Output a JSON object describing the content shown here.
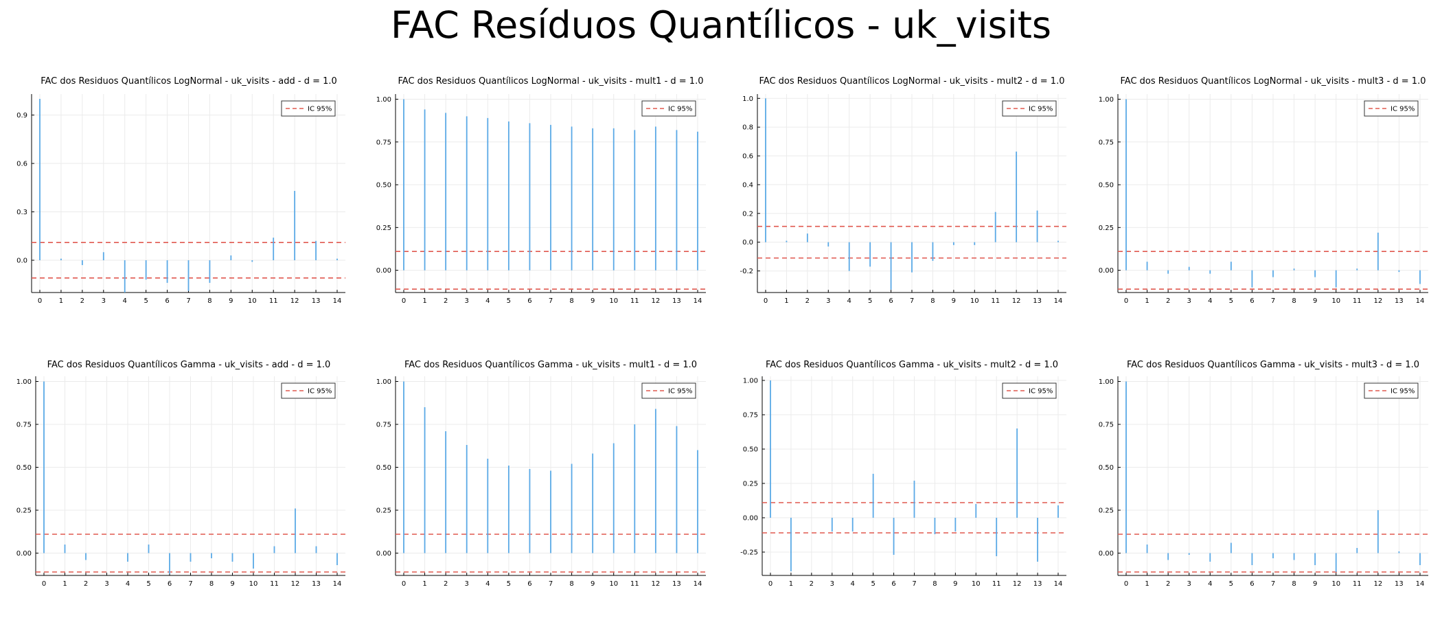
{
  "main_title": "FAC Resíduos Quantílicos - uk_visits",
  "colors": {
    "bar": "#5aa9e6",
    "ci": "#e0584f",
    "grid": "#ebebeb",
    "axis": "#000000"
  },
  "chart_data": [
    {
      "type": "bar",
      "title": "FAC dos Residuos Quantílicos LogNormal - uk_visits - add - d = 1.0",
      "legend": {
        "label": "IC 95%",
        "position": "top-right"
      },
      "x": [
        0,
        1,
        2,
        3,
        4,
        5,
        6,
        7,
        8,
        9,
        10,
        11,
        12,
        13,
        14
      ],
      "values": [
        1.0,
        0.01,
        -0.03,
        0.05,
        -0.2,
        -0.12,
        -0.14,
        -0.19,
        -0.14,
        0.03,
        -0.01,
        0.14,
        0.43,
        0.12,
        0.01
      ],
      "ci": 0.11,
      "ylim": [
        -0.2,
        1.03
      ],
      "yticks": [
        0.0,
        0.3,
        0.6,
        0.9
      ],
      "ytick_labels": [
        "0.0",
        "0.3",
        "0.6",
        "0.9"
      ],
      "grid": true
    },
    {
      "type": "bar",
      "title": "FAC dos Residuos Quantílicos LogNormal - uk_visits - mult1 - d = 1.0",
      "legend": {
        "label": "IC 95%",
        "position": "top-right"
      },
      "x": [
        0,
        1,
        2,
        3,
        4,
        5,
        6,
        7,
        8,
        9,
        10,
        11,
        12,
        13,
        14
      ],
      "values": [
        1.0,
        0.94,
        0.92,
        0.9,
        0.89,
        0.87,
        0.86,
        0.85,
        0.84,
        0.83,
        0.83,
        0.82,
        0.84,
        0.82,
        0.81
      ],
      "ci": 0.11,
      "ylim": [
        -0.13,
        1.03
      ],
      "yticks": [
        0.0,
        0.25,
        0.5,
        0.75,
        1.0
      ],
      "ytick_labels": [
        "0.00",
        "0.25",
        "0.50",
        "0.75",
        "1.00"
      ],
      "grid": true
    },
    {
      "type": "bar",
      "title": "FAC dos Residuos Quantílicos LogNormal - uk_visits - mult2 - d = 1.0",
      "legend": {
        "label": "IC 95%",
        "position": "top-right"
      },
      "x": [
        0,
        1,
        2,
        3,
        4,
        5,
        6,
        7,
        8,
        9,
        10,
        11,
        12,
        13,
        14
      ],
      "values": [
        1.0,
        0.01,
        0.06,
        -0.03,
        -0.2,
        -0.17,
        -0.33,
        -0.21,
        -0.13,
        -0.02,
        -0.02,
        0.21,
        0.63,
        0.22,
        0.01
      ],
      "ci": 0.11,
      "ylim": [
        -0.35,
        1.03
      ],
      "yticks": [
        -0.2,
        0.0,
        0.2,
        0.4,
        0.6,
        0.8,
        1.0
      ],
      "ytick_labels": [
        "-0.2",
        "0.0",
        "0.2",
        "0.4",
        "0.6",
        "0.8",
        "1.0"
      ],
      "grid": true
    },
    {
      "type": "bar",
      "title": "FAC dos Residuos Quantílicos LogNormal - uk_visits - mult3 - d = 1.0",
      "legend": {
        "label": "IC 95%",
        "position": "top-right"
      },
      "x": [
        0,
        1,
        2,
        3,
        4,
        5,
        6,
        7,
        8,
        9,
        10,
        11,
        12,
        13,
        14
      ],
      "values": [
        1.0,
        0.05,
        -0.02,
        0.02,
        -0.02,
        0.05,
        -0.1,
        -0.04,
        0.01,
        -0.04,
        -0.1,
        0.01,
        0.22,
        -0.01,
        -0.08
      ],
      "ci": 0.11,
      "ylim": [
        -0.13,
        1.03
      ],
      "yticks": [
        0.0,
        0.25,
        0.5,
        0.75,
        1.0
      ],
      "ytick_labels": [
        "0.00",
        "0.25",
        "0.50",
        "0.75",
        "1.00"
      ],
      "grid": true
    },
    {
      "type": "bar",
      "title": "FAC dos Residuos Quantílicos Gamma - uk_visits - add - d = 1.0",
      "legend": {
        "label": "IC 95%",
        "position": "top-right"
      },
      "x": [
        0,
        1,
        2,
        3,
        4,
        5,
        6,
        7,
        8,
        9,
        10,
        11,
        12,
        13,
        14
      ],
      "values": [
        1.0,
        0.05,
        -0.04,
        0.0,
        -0.05,
        0.05,
        -0.12,
        -0.05,
        -0.03,
        -0.05,
        -0.09,
        0.04,
        0.26,
        0.04,
        -0.07
      ],
      "ci": 0.11,
      "ylim": [
        -0.13,
        1.03
      ],
      "yticks": [
        0.0,
        0.25,
        0.5,
        0.75,
        1.0
      ],
      "ytick_labels": [
        "0.00",
        "0.25",
        "0.50",
        "0.75",
        "1.00"
      ],
      "grid": true
    },
    {
      "type": "bar",
      "title": "FAC dos Residuos Quantílicos Gamma - uk_visits - mult1 - d = 1.0",
      "legend": {
        "label": "IC 95%",
        "position": "top-right"
      },
      "x": [
        0,
        1,
        2,
        3,
        4,
        5,
        6,
        7,
        8,
        9,
        10,
        11,
        12,
        13,
        14
      ],
      "values": [
        1.0,
        0.85,
        0.71,
        0.63,
        0.55,
        0.51,
        0.49,
        0.48,
        0.52,
        0.58,
        0.64,
        0.75,
        0.84,
        0.74,
        0.6
      ],
      "ci": 0.11,
      "ylim": [
        -0.13,
        1.03
      ],
      "yticks": [
        0.0,
        0.25,
        0.5,
        0.75,
        1.0
      ],
      "ytick_labels": [
        "0.00",
        "0.25",
        "0.50",
        "0.75",
        "1.00"
      ],
      "grid": true
    },
    {
      "type": "bar",
      "title": "FAC dos Residuos Quantílicos Gamma - uk_visits - mult2 - d = 1.0",
      "legend": {
        "label": "IC 95%",
        "position": "top-right"
      },
      "x": [
        0,
        1,
        2,
        3,
        4,
        5,
        6,
        7,
        8,
        9,
        10,
        11,
        12,
        13,
        14
      ],
      "values": [
        1.0,
        -0.39,
        0.0,
        -0.1,
        -0.1,
        0.32,
        -0.27,
        0.27,
        -0.12,
        -0.1,
        0.1,
        -0.28,
        0.65,
        -0.32,
        0.09
      ],
      "ci": 0.11,
      "ylim": [
        -0.42,
        1.03
      ],
      "yticks": [
        -0.25,
        0.0,
        0.25,
        0.5,
        0.75,
        1.0
      ],
      "ytick_labels": [
        "-0.25",
        "0.00",
        "0.25",
        "0.50",
        "0.75",
        "1.00"
      ],
      "grid": true
    },
    {
      "type": "bar",
      "title": "FAC dos Residuos Quantílicos Gamma - uk_visits - mult3 - d = 1.0",
      "legend": {
        "label": "IC 95%",
        "position": "top-right"
      },
      "x": [
        0,
        1,
        2,
        3,
        4,
        5,
        6,
        7,
        8,
        9,
        10,
        11,
        12,
        13,
        14
      ],
      "values": [
        1.0,
        0.05,
        -0.04,
        -0.01,
        -0.05,
        0.06,
        -0.07,
        -0.03,
        -0.04,
        -0.07,
        -0.11,
        0.03,
        0.25,
        0.01,
        -0.07
      ],
      "ci": 0.11,
      "ylim": [
        -0.13,
        1.03
      ],
      "yticks": [
        0.0,
        0.25,
        0.5,
        0.75,
        1.0
      ],
      "ytick_labels": [
        "0.00",
        "0.25",
        "0.50",
        "0.75",
        "1.00"
      ],
      "grid": true
    }
  ]
}
